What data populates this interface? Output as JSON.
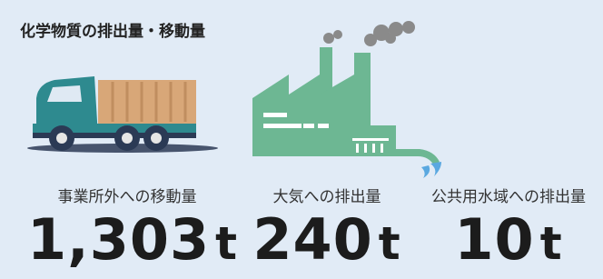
{
  "header": {
    "title": "化学物質の排出量・移動量"
  },
  "stats": [
    {
      "label": "事業所外への移動量",
      "value": "1,303",
      "unit": "t"
    },
    {
      "label": "大気への排出量",
      "value": "240",
      "unit": "t"
    },
    {
      "label": "公共用水域への排出量",
      "value": "10",
      "unit": "t"
    }
  ]
}
